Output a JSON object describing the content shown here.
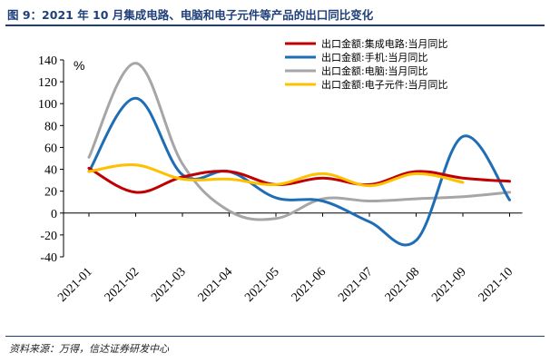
{
  "figure_title": "图 9：2021 年 10 月集成电路、电脑和电子元件等产品的出口同比变化",
  "source": "资料来源：万得，信达证券研发中心",
  "chart_data": {
    "type": "line",
    "title": "",
    "xlabel": "",
    "ylabel": "",
    "unit_label": "%",
    "ylim": [
      -40,
      140
    ],
    "yticks": [
      -40,
      -20,
      0,
      20,
      40,
      60,
      80,
      100,
      120,
      140
    ],
    "grid": false,
    "legend_position": "top-right",
    "categories": [
      "2021-01",
      "2021-02",
      "2021-03",
      "2021-04",
      "2021-05",
      "2021-06",
      "2021-07",
      "2021-08",
      "2021-09",
      "2021-10"
    ],
    "series": [
      {
        "name": "出口金额:集成电路:当月同比",
        "color": "#c00000",
        "values": [
          41,
          19,
          33,
          38,
          26,
          32,
          26,
          38,
          32,
          29
        ]
      },
      {
        "name": "出口金额:手机:当月同比",
        "color": "#1f6db5",
        "values": [
          38,
          105,
          35,
          38,
          14,
          11,
          -8,
          -25,
          70,
          12
        ]
      },
      {
        "name": "出口金额:电脑:当月同比",
        "color": "#a6a6a6",
        "values": [
          51,
          137,
          45,
          2,
          -5,
          13,
          11,
          13,
          15,
          19
        ]
      },
      {
        "name": "出口金额:电子元件:当月同比",
        "color": "#ffc000",
        "values": [
          38,
          44,
          31,
          31,
          26,
          36,
          25,
          36,
          28,
          null
        ]
      }
    ]
  }
}
